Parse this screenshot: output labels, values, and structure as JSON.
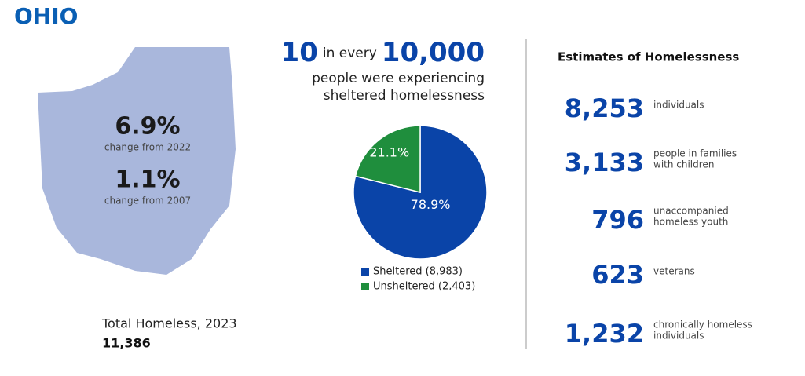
{
  "title": "OHIO",
  "state_panel": {
    "stats": [
      {
        "value": "6.9%",
        "label": "change from 2022"
      },
      {
        "value": "1.1%",
        "label": "change from 2007"
      }
    ],
    "total_label": "Total Homeless, 2023",
    "total_value": "11,386"
  },
  "rate": {
    "number": "10",
    "connector": "in every",
    "base": "10,000",
    "lines": [
      "people were experiencing",
      "sheltered homelessness"
    ]
  },
  "chart_data": {
    "type": "pie",
    "categories": [
      "Sheltered (8,983)",
      "Unsheltered (2,403)"
    ],
    "values": [
      78.9,
      21.1
    ],
    "value_labels": [
      "78.9%",
      "21.1%"
    ],
    "colors": [
      "#0a44a8",
      "#1f8e3d"
    ]
  },
  "estimates": {
    "title": "Estimates of Homelessness",
    "items": [
      {
        "value": "8,253",
        "lines": [
          "individuals"
        ]
      },
      {
        "value": "3,133",
        "lines": [
          "people in families",
          "with children"
        ]
      },
      {
        "value": "796",
        "lines": [
          "unaccompanied",
          "homeless youth"
        ]
      },
      {
        "value": "623",
        "lines": [
          "veterans"
        ]
      },
      {
        "value": "1,232",
        "lines": [
          "chronically homeless",
          "individuals"
        ]
      }
    ]
  }
}
